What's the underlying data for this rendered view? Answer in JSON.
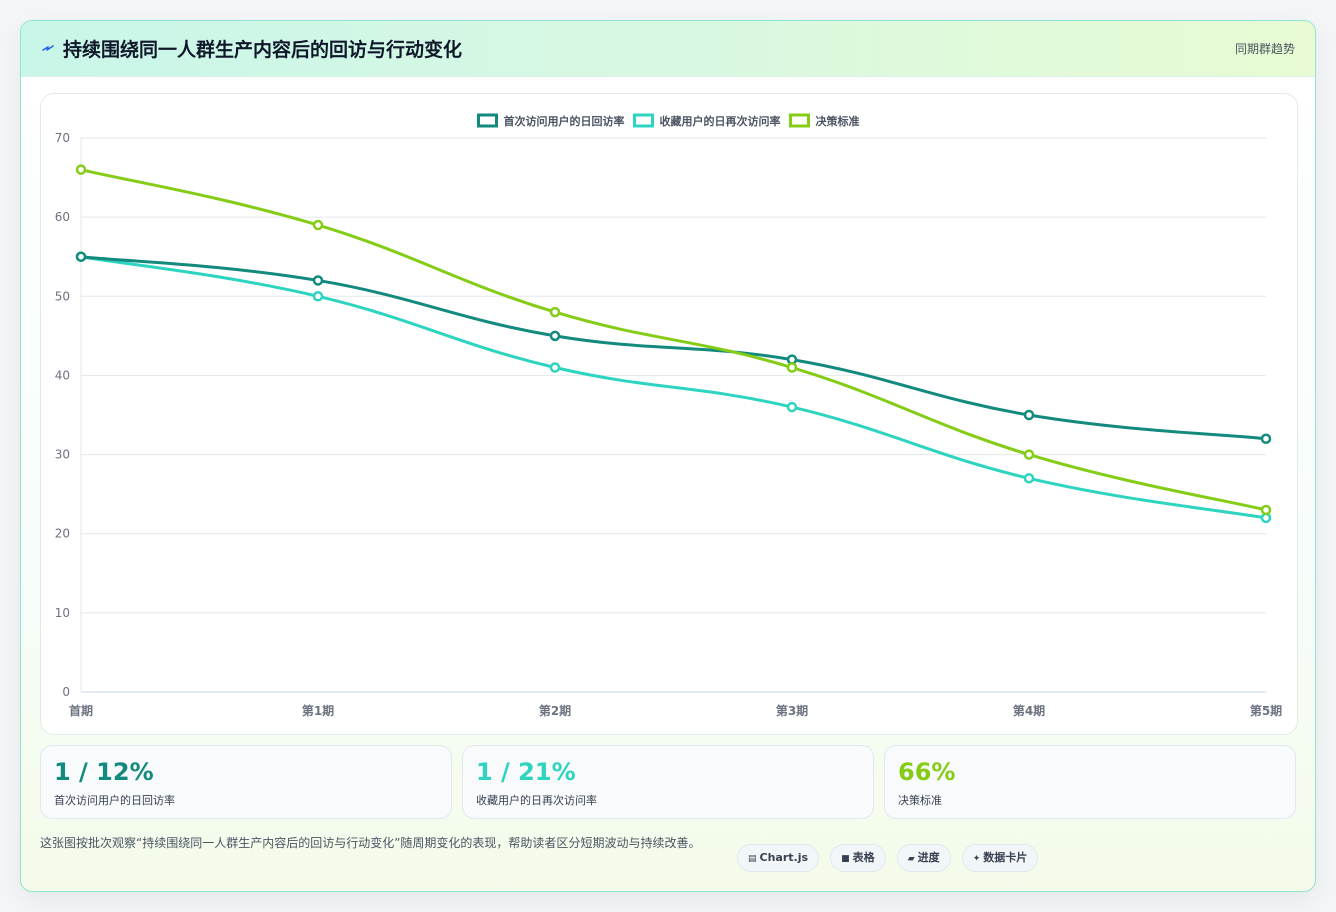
{
  "header": {
    "title": "持续围绕同一人群生产内容后的回访与行动变化",
    "tag": "同期群趋势"
  },
  "colors": {
    "series1": "#138a7e",
    "series2": "#2dd4bf",
    "series3": "#84cc16"
  },
  "chart_data": {
    "type": "line",
    "categories": [
      "首期",
      "第1期",
      "第2期",
      "第3期",
      "第4期",
      "第5期"
    ],
    "series": [
      {
        "name": "首次访问用户的日回访率",
        "color": "#138a7e",
        "values": [
          55,
          52,
          45,
          42,
          35,
          32
        ]
      },
      {
        "name": "收藏用户的日再次访问率",
        "color": "#2dd4bf",
        "values": [
          55,
          50,
          41,
          36,
          27,
          22
        ]
      },
      {
        "name": "决策标准",
        "color": "#84cc16",
        "values": [
          66,
          59,
          48,
          41,
          30,
          23
        ]
      }
    ],
    "ylim": [
      0,
      70
    ],
    "yticks": [
      0,
      10,
      20,
      30,
      40,
      50,
      60,
      70
    ],
    "grid": true,
    "legend": "top-center"
  },
  "stats": [
    {
      "value": "1 / 12%",
      "label": "首次访问用户的日回访率",
      "color": "#138a7e"
    },
    {
      "value": "1 / 21%",
      "label": "收藏用户的日再次访问率",
      "color": "#2dd4bf"
    },
    {
      "value": "66%",
      "label": "决策标准",
      "color": "#84cc16"
    }
  ],
  "footnote": "这张图按批次观察“持续围绕同一人群生产内容后的回访与行动变化”随周期变化的表现，帮助读者区分短期波动与持续改善。",
  "chips": [
    {
      "icon": "▤",
      "label": "Chart.js"
    },
    {
      "icon": "■",
      "label": "表格"
    },
    {
      "icon": "▰",
      "label": "进度"
    },
    {
      "icon": "✦",
      "label": "数据卡片"
    }
  ]
}
